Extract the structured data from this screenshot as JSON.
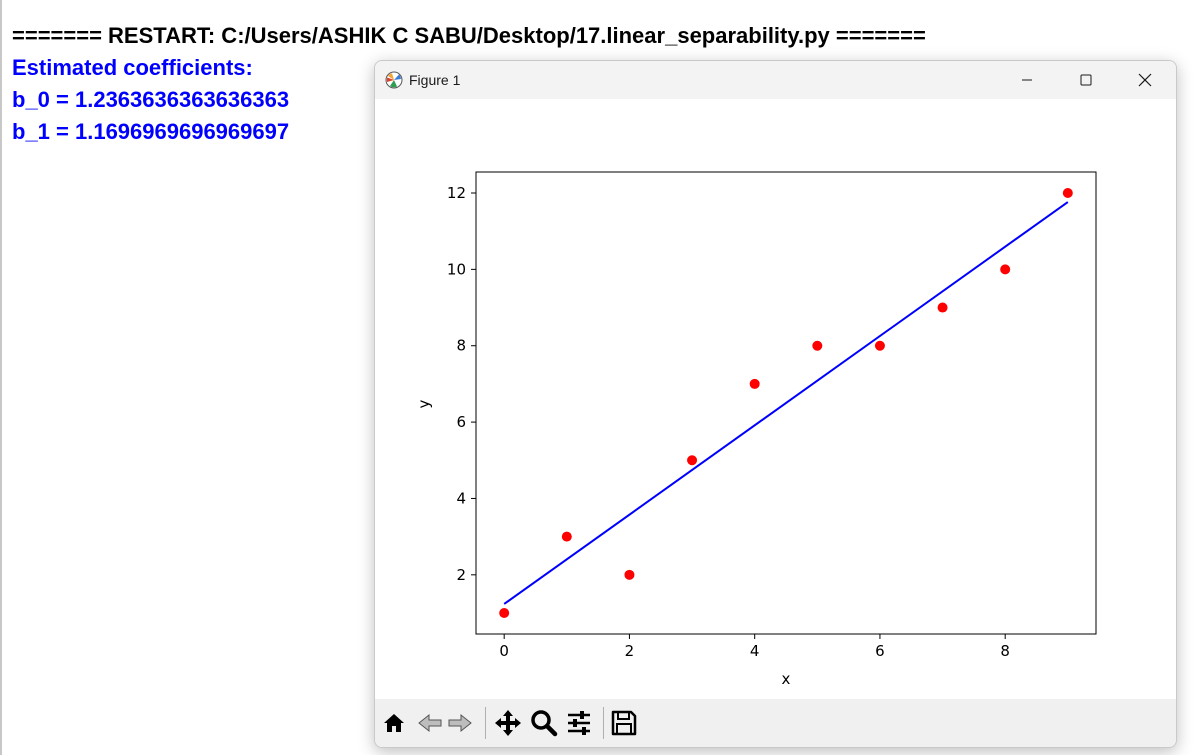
{
  "console": {
    "restart_line": "======= RESTART: C:/Users/ASHIK C SABU/Desktop/17.linear_separability.py =======",
    "output_lines": [
      "Estimated coefficients:",
      "b_0 = 1.2363636363636363",
      "b_1 = 1.1696969696969697"
    ]
  },
  "window": {
    "title": "Figure 1",
    "controls": [
      "minimize-icon",
      "maximize-icon",
      "close-icon"
    ]
  },
  "toolbar": {
    "icons": [
      "home-icon",
      "back-icon",
      "forward-icon",
      "pan-icon",
      "zoom-icon",
      "subplots-icon",
      "save-icon"
    ]
  },
  "colors": {
    "console_header": "#000000",
    "console_output": "#0000ff",
    "scatter": "#ff0000",
    "regression_line": "#0000ff"
  },
  "chart_data": {
    "type": "scatter",
    "x": [
      0,
      1,
      2,
      3,
      4,
      5,
      6,
      7,
      8,
      9
    ],
    "y": [
      1,
      3,
      2,
      5,
      7,
      8,
      8,
      9,
      10,
      12
    ],
    "line": {
      "intercept": 1.2363636363636363,
      "slope": 1.1696969696969697,
      "x_range": [
        0,
        9
      ]
    },
    "xlabel": "x",
    "ylabel": "y",
    "xlim": [
      -0.45,
      9.45
    ],
    "ylim": [
      0.45,
      12.55
    ],
    "xticks": [
      0,
      2,
      4,
      6,
      8
    ],
    "yticks": [
      2,
      4,
      6,
      8,
      10,
      12
    ],
    "grid": false,
    "legend": "none"
  }
}
